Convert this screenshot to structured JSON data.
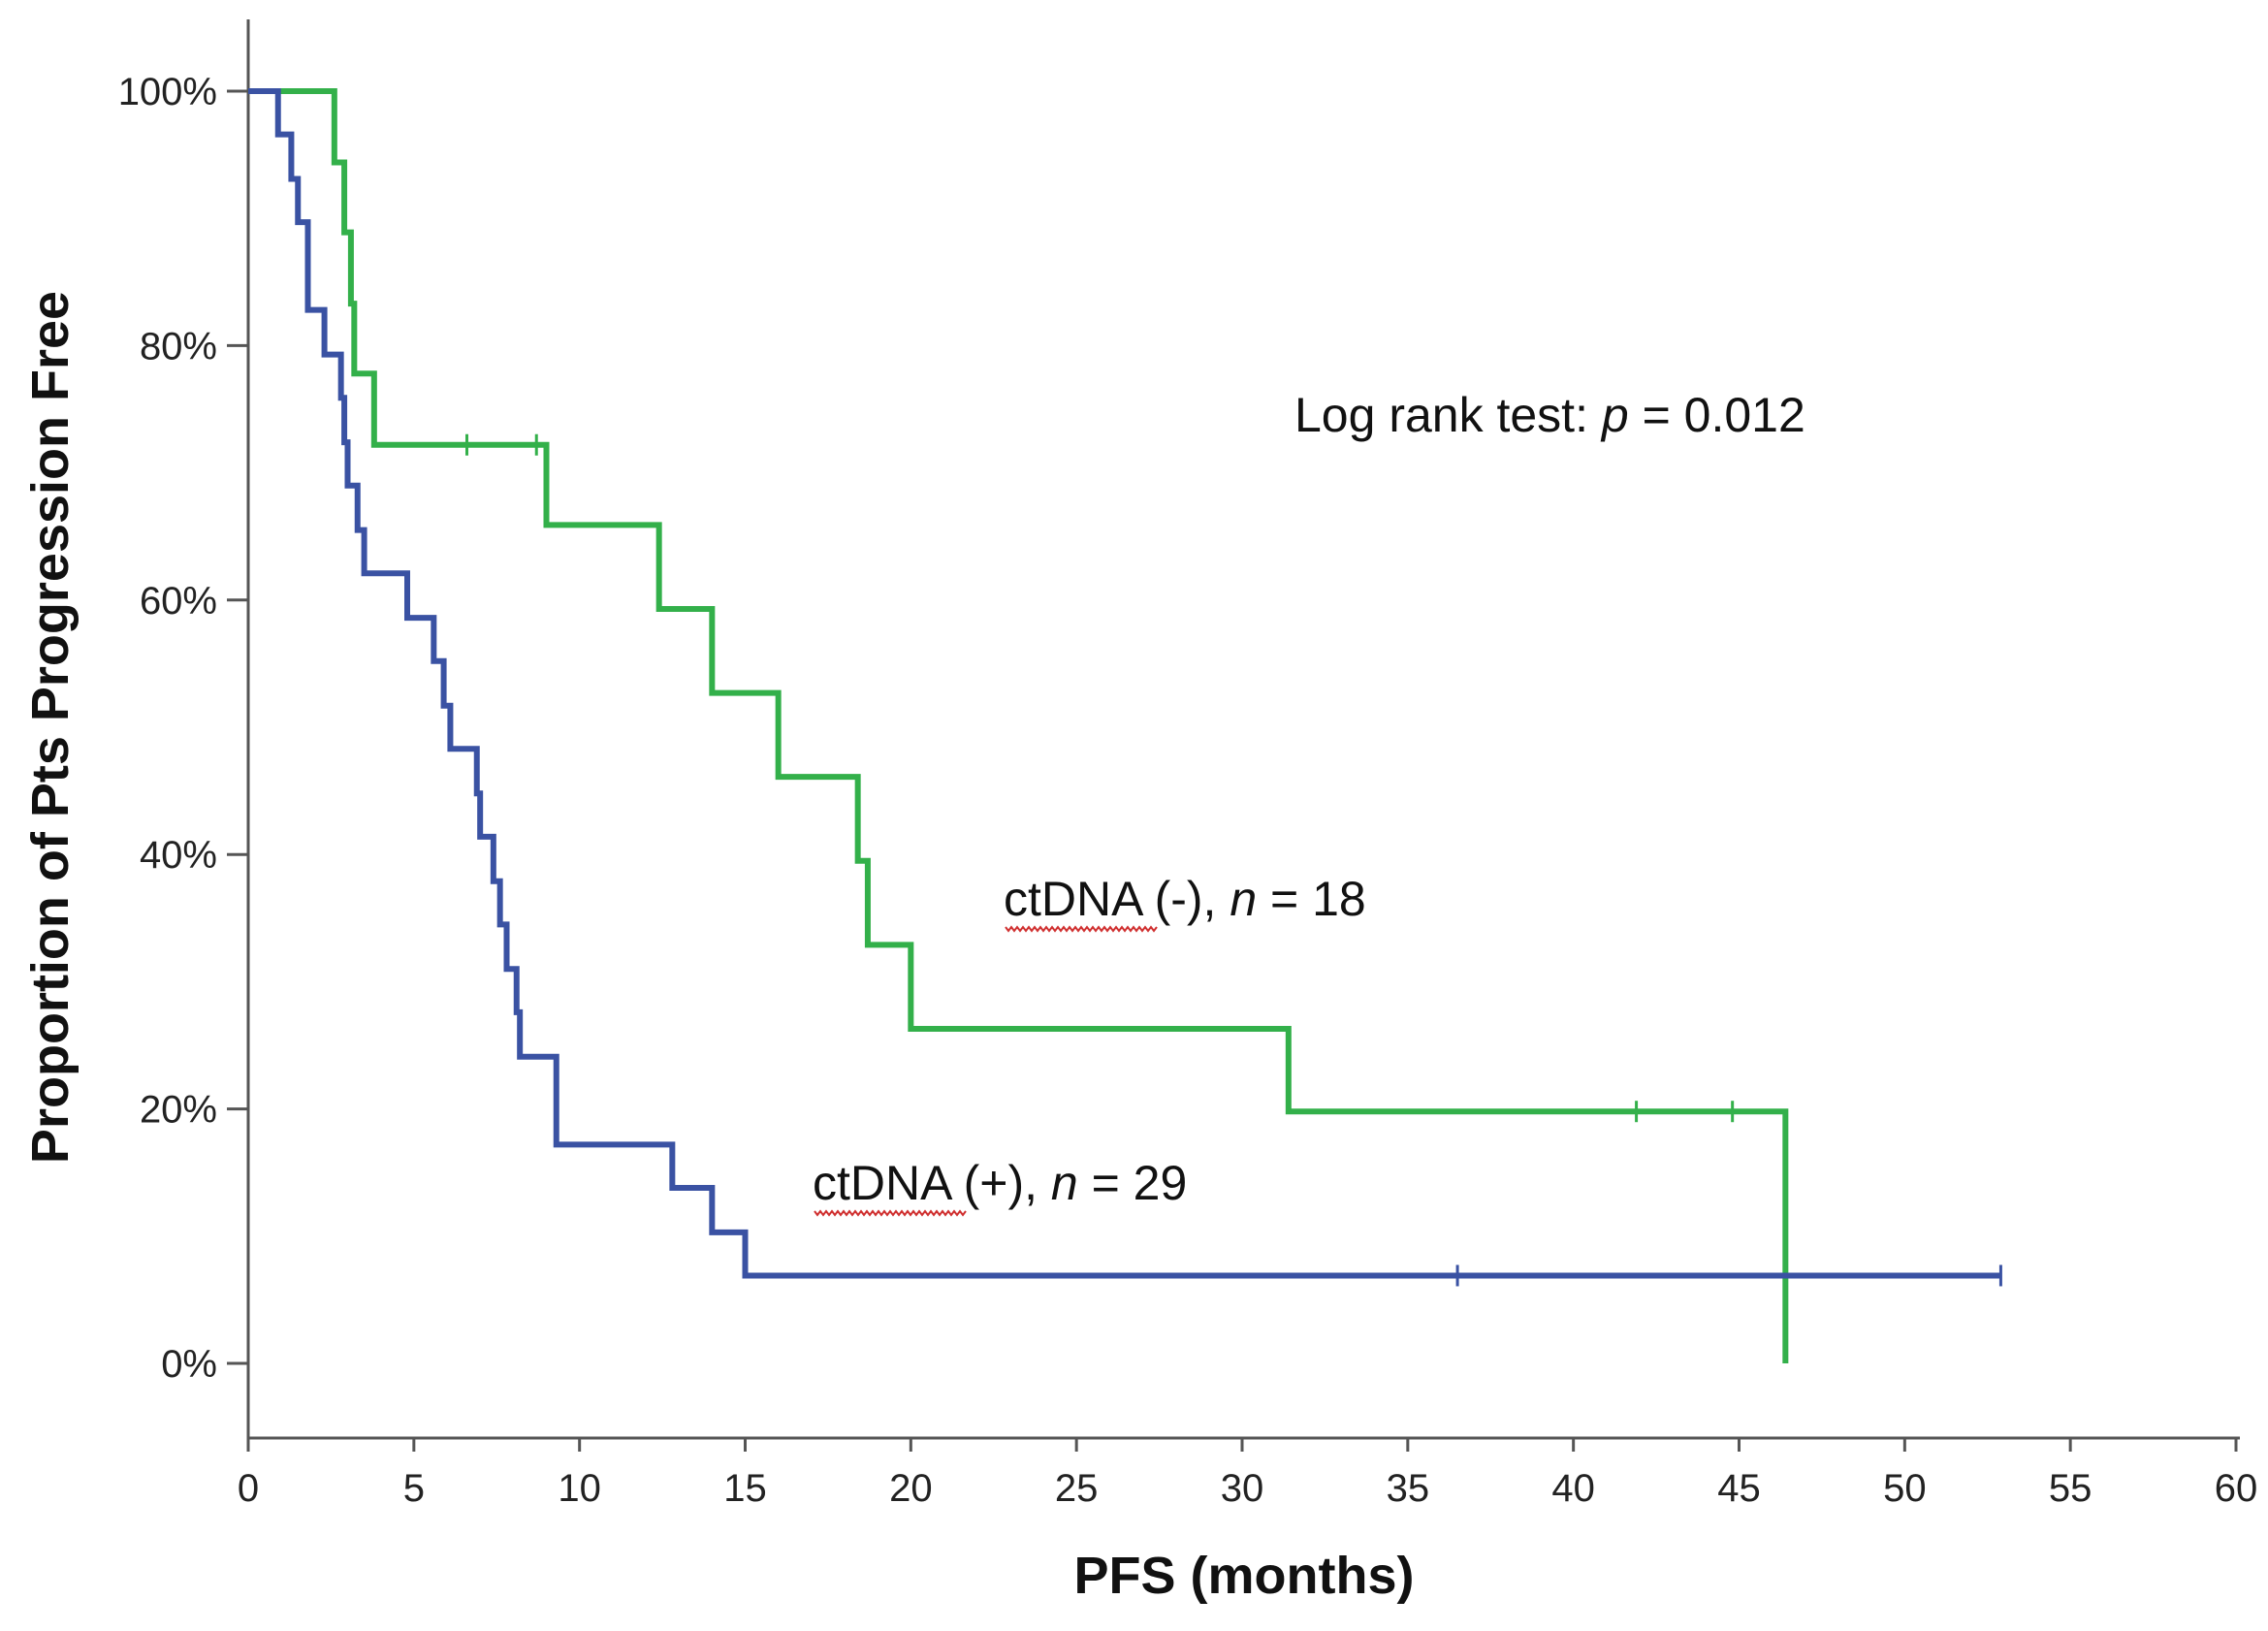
{
  "chart_data": {
    "type": "line",
    "subtype": "kaplan-meier-step",
    "title": "",
    "xlabel": "PFS (months)",
    "ylabel": "Proportion of Pts Progression Free",
    "xlim": [
      0,
      60
    ],
    "ylim": [
      0,
      100
    ],
    "x_ticks": [
      0,
      5,
      10,
      15,
      20,
      25,
      30,
      35,
      40,
      45,
      50,
      55,
      60
    ],
    "x_tick_labels": [
      "0",
      "5",
      "10",
      "15",
      "20",
      "25",
      "30",
      "35",
      "40",
      "45",
      "50",
      "55",
      "60"
    ],
    "y_ticks": [
      0,
      20,
      40,
      60,
      80,
      100
    ],
    "y_tick_labels": [
      "0%",
      "20%",
      "40%",
      "60%",
      "80%",
      "100%"
    ],
    "grid": false,
    "legend": "none",
    "annotations": {
      "logrank": {
        "prefix": "Log rank test: ",
        "p_symbol": "p",
        "suffix": " = 0.012"
      },
      "neg_label": {
        "prefix": "ctDNA (-), ",
        "n_symbol": "n",
        "suffix": " = 18"
      },
      "pos_label": {
        "prefix": "ctDNA (+), ",
        "n_symbol": "n",
        "suffix": " = 29"
      }
    },
    "series": [
      {
        "key": "ctdna_neg",
        "color": "#33b04a",
        "steps": [
          [
            0,
            100
          ],
          [
            2.6,
            94.4
          ],
          [
            2.9,
            88.9
          ],
          [
            3.1,
            83.3
          ],
          [
            3.2,
            77.8
          ],
          [
            3.8,
            72.2
          ],
          [
            9.0,
            65.9
          ],
          [
            12.4,
            59.3
          ],
          [
            14.0,
            52.7
          ],
          [
            16.0,
            46.1
          ],
          [
            18.4,
            39.5
          ],
          [
            18.7,
            32.9
          ],
          [
            20.0,
            26.3
          ],
          [
            31.4,
            19.8
          ],
          [
            46.4,
            0
          ]
        ],
        "censored": [
          [
            6.6,
            72.2
          ],
          [
            8.7,
            72.2
          ],
          [
            41.9,
            19.8
          ],
          [
            44.8,
            19.8
          ]
        ]
      },
      {
        "key": "ctdna_pos",
        "color": "#3a52a3",
        "steps": [
          [
            0,
            100
          ],
          [
            0.9,
            96.6
          ],
          [
            1.3,
            93.1
          ],
          [
            1.5,
            89.7
          ],
          [
            1.8,
            82.8
          ],
          [
            2.3,
            79.3
          ],
          [
            2.8,
            75.9
          ],
          [
            2.9,
            72.4
          ],
          [
            3.0,
            69.0
          ],
          [
            3.3,
            65.5
          ],
          [
            3.5,
            62.1
          ],
          [
            4.8,
            58.6
          ],
          [
            5.6,
            55.2
          ],
          [
            5.9,
            51.7
          ],
          [
            6.1,
            48.3
          ],
          [
            6.9,
            44.8
          ],
          [
            7.0,
            41.4
          ],
          [
            7.4,
            37.9
          ],
          [
            7.6,
            34.5
          ],
          [
            7.8,
            31.0
          ],
          [
            8.1,
            27.6
          ],
          [
            8.2,
            24.1
          ],
          [
            9.3,
            17.2
          ],
          [
            12.8,
            13.8
          ],
          [
            14.0,
            10.3
          ],
          [
            15.0,
            6.9
          ]
        ],
        "censored": [
          [
            36.5,
            6.9
          ],
          [
            52.9,
            6.9
          ]
        ],
        "end_x": 52.9
      }
    ]
  }
}
